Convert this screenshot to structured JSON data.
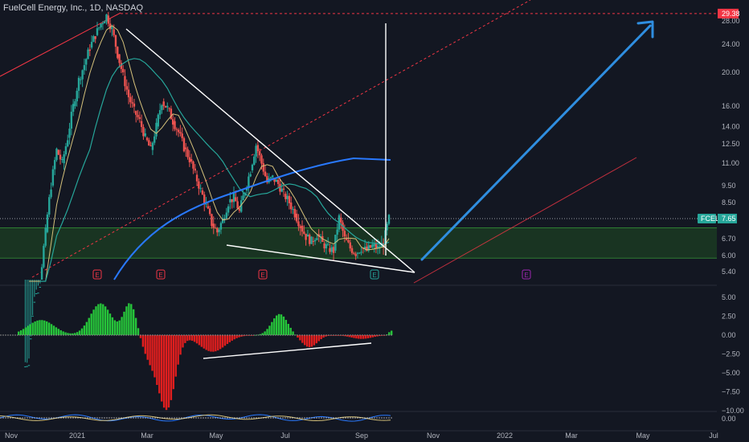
{
  "header": {
    "title": "FuelCell Energy, Inc., 1D, NASDAQ"
  },
  "colors": {
    "background": "#131722",
    "up_candle": "#26a69a",
    "down_candle": "#ef5350",
    "sma_long": "#2979ff",
    "sma_mid": "#26a69a",
    "sma_short": "#d4c07a",
    "zone_fill": "#1b3a22",
    "zone_border": "#2e7d32",
    "trendline": "#ffffff",
    "channel": "#f23645",
    "arrow": "#2f8ee0",
    "hist_up": "#26c43a",
    "hist_down": "#e01e1e",
    "price_tag": "#26a69a",
    "target_tag": "#f23645",
    "earnings_badge": "#f23645",
    "upcoming_badge": "#9c27b0",
    "current_badge": "#26a69a"
  },
  "chart_data": [
    {
      "type": "candlestick",
      "name": "price",
      "symbol_label": "FCEL",
      "scale": "log",
      "y_ticks": [
        28.0,
        24.0,
        20.0,
        16.0,
        14.0,
        12.5,
        11.0,
        9.5,
        8.5,
        7.65,
        6.7,
        6.0,
        5.4
      ],
      "y_tick_labels": [
        "28.00",
        "24.00",
        "20.00",
        "16.00",
        "14.00",
        "12.50",
        "11.00",
        "9.50",
        "8.50",
        "7.65",
        "6.70",
        "6.00",
        "5.40"
      ],
      "x_ticks": [
        "Nov",
        "2021",
        "Mar",
        "May",
        "Jul",
        "Sep",
        "Nov",
        "2022",
        "Mar",
        "May",
        "Jul"
      ],
      "last_price": 7.65,
      "last_price_label": "7.65",
      "target_price": 29.38,
      "target_label": "29.38",
      "support_zone": [
        5.9,
        7.2
      ],
      "earnings_markers": [
        "E",
        "E",
        "E",
        "E",
        "E"
      ],
      "weekly_closes": [
        3.0,
        4.5,
        5.0,
        7.0,
        9.5,
        12.0,
        11.0,
        13.0,
        16.0,
        19.0,
        21.0,
        23.5,
        25.5,
        27.5,
        29.0,
        26.5,
        22.5,
        19.5,
        17.0,
        15.5,
        14.5,
        13.0,
        12.0,
        14.0,
        16.5,
        15.8,
        14.5,
        13.5,
        12.2,
        11.3,
        10.2,
        9.2,
        8.3,
        7.4,
        7.0,
        7.6,
        8.5,
        8.8,
        8.0,
        9.2,
        10.5,
        12.4,
        11.0,
        9.7,
        10.0,
        9.6,
        9.0,
        8.5,
        7.9,
        7.3,
        6.8,
        6.6,
        6.9,
        6.5,
        6.3,
        6.2,
        7.7,
        6.7,
        6.3,
        6.1,
        6.3,
        6.2,
        6.4,
        6.3,
        6.5,
        7.65
      ]
    },
    {
      "type": "histogram",
      "name": "momentum",
      "y_ticks": [
        5.0,
        2.5,
        0.0,
        -2.5,
        -5.0,
        -7.5,
        -10.0
      ],
      "y_tick_labels": [
        "5.00",
        "2.50",
        "0.00",
        "−2.50",
        "−5.00",
        "−7.50",
        "−10.00"
      ],
      "ylim": [
        -10.0,
        6.0
      ]
    },
    {
      "type": "line",
      "name": "oscillator",
      "y_ticks": [
        0.0
      ],
      "y_tick_labels": [
        "0.00"
      ]
    }
  ]
}
